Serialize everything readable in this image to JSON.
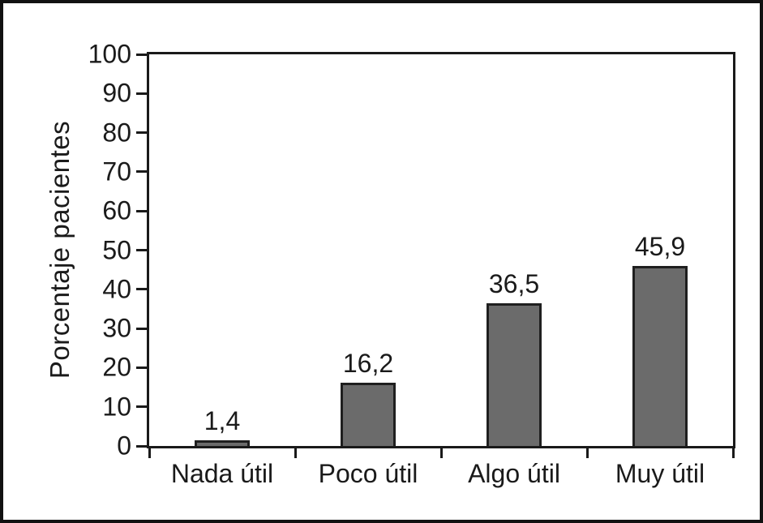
{
  "chart_data": {
    "type": "bar",
    "title": "",
    "xlabel": "",
    "ylabel": "Porcentaje pacientes",
    "categories": [
      "Nada útil",
      "Poco útil",
      "Algo útil",
      "Muy útil"
    ],
    "values": [
      1.4,
      16.2,
      36.5,
      45.9
    ],
    "value_labels": [
      "1,4",
      "16,2",
      "36,5",
      "45,9"
    ],
    "ylim": [
      0,
      100
    ],
    "yticks": [
      0,
      10,
      20,
      30,
      40,
      50,
      60,
      70,
      80,
      90,
      100
    ],
    "grid": false,
    "legend": null,
    "bar_color": "#6b6b6b",
    "bar_border_color": "#1f1f1f",
    "axis_color": "#1a1a1a",
    "decimal_separator": ","
  }
}
